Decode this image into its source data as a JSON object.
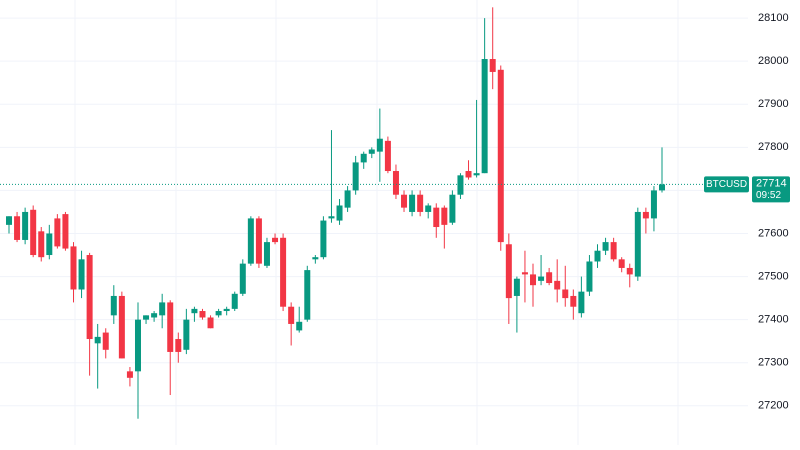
{
  "chart_data": {
    "type": "candlestick",
    "symbol": "BTCUSD",
    "last_value": 27714,
    "countdown": "09:52",
    "up_color": "#089981",
    "down_color": "#f23645",
    "ylim": [
      27109,
      28142
    ],
    "yticks": [
      27200,
      27300,
      27400,
      27500,
      27600,
      27700,
      27800,
      27900,
      28000,
      28100
    ],
    "grid": true,
    "open": [
      27620,
      27640,
      27585,
      27655,
      27605,
      27550,
      27635,
      27645,
      27570,
      27470,
      27550,
      27345,
      27370,
      27410,
      27455,
      27280,
      27280,
      27400,
      27405,
      27410,
      27440,
      27355,
      27330,
      27415,
      27420,
      27405,
      27410,
      27420,
      27425,
      27460,
      27530,
      27635,
      27525,
      27590,
      27590,
      27430,
      27375,
      27400,
      27540,
      27545,
      27635,
      27630,
      27660,
      27700,
      27765,
      27785,
      27790,
      27815,
      27745,
      27690,
      27650,
      27690,
      27650,
      27660,
      27660,
      27625,
      27690,
      27745,
      27735,
      27740,
      28005,
      27980,
      27575,
      27455,
      27510,
      27505,
      27490,
      27510,
      27490,
      27470,
      27455,
      27415,
      27465,
      27535,
      27560,
      27580,
      27540,
      27520,
      27500,
      27650,
      27635,
      27700
    ],
    "high": [
      27640,
      27650,
      27660,
      27665,
      27615,
      27620,
      27645,
      27650,
      27580,
      27560,
      27555,
      27390,
      27380,
      27480,
      27465,
      27290,
      27440,
      27410,
      27420,
      27460,
      27445,
      27370,
      27425,
      27430,
      27425,
      27410,
      27425,
      27430,
      27465,
      27540,
      27640,
      27640,
      27590,
      27600,
      27600,
      27440,
      27430,
      27525,
      27550,
      27640,
      27840,
      27680,
      27710,
      27780,
      27790,
      27800,
      27890,
      27825,
      27760,
      27700,
      27700,
      27700,
      27670,
      27670,
      27665,
      27700,
      27740,
      27770,
      27910,
      28100,
      28125,
      27990,
      27600,
      27500,
      27560,
      27530,
      27550,
      27520,
      27540,
      27525,
      27470,
      27500,
      27550,
      27575,
      27590,
      27590,
      27545,
      27530,
      27660,
      27660,
      27710,
      27800
    ],
    "low": [
      27600,
      27580,
      27575,
      27545,
      27535,
      27540,
      27565,
      27560,
      27440,
      27450,
      27270,
      27240,
      27310,
      27390,
      27310,
      27245,
      27170,
      27390,
      27395,
      27380,
      27225,
      27300,
      27320,
      27395,
      27400,
      27380,
      27405,
      27410,
      27420,
      27455,
      27525,
      27520,
      27520,
      27575,
      27420,
      27340,
      27370,
      27395,
      27530,
      27540,
      27625,
      27620,
      27650,
      27690,
      27750,
      27775,
      27720,
      27740,
      27680,
      27650,
      27640,
      27640,
      27635,
      27590,
      27565,
      27620,
      27680,
      27725,
      27730,
      27740,
      27935,
      27560,
      27390,
      27370,
      27440,
      27430,
      27480,
      27480,
      27440,
      27430,
      27400,
      27405,
      27455,
      27520,
      27550,
      27535,
      27510,
      27475,
      27490,
      27600,
      27605,
      27695
    ],
    "close": [
      27640,
      27585,
      27650,
      27550,
      27545,
      27600,
      27570,
      27565,
      27470,
      27540,
      27355,
      27360,
      27330,
      27455,
      27310,
      27265,
      27400,
      27410,
      27415,
      27440,
      27325,
      27325,
      27400,
      27425,
      27405,
      27380,
      27420,
      27425,
      27460,
      27530,
      27635,
      27530,
      27580,
      27580,
      27430,
      27390,
      27395,
      27515,
      27545,
      27630,
      27640,
      27665,
      27700,
      27765,
      27785,
      27795,
      27820,
      27745,
      27690,
      27660,
      27690,
      27650,
      27665,
      27615,
      27620,
      27690,
      27735,
      27730,
      27740,
      28005,
      27975,
      27580,
      27450,
      27495,
      27505,
      27480,
      27500,
      27485,
      27470,
      27450,
      27430,
      27465,
      27535,
      27560,
      27580,
      27540,
      27520,
      27505,
      27650,
      27635,
      27700,
      27714
    ]
  }
}
